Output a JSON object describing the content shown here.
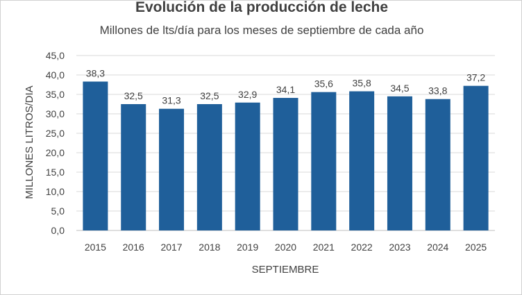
{
  "chart_data": {
    "type": "bar",
    "title": "Evolución de la producción de leche",
    "subtitle": "Millones de lts/día para los meses de septiembre de cada año",
    "xlabel": "SEPTIEMBRE",
    "ylabel": "MILLONES LITROS/DIA",
    "categories": [
      "2015",
      "2016",
      "2017",
      "2018",
      "2019",
      "2020",
      "2021",
      "2022",
      "2023",
      "2024",
      "2025"
    ],
    "values": [
      38.3,
      32.5,
      31.3,
      32.5,
      32.9,
      34.1,
      35.6,
      35.8,
      34.5,
      33.8,
      37.2
    ],
    "value_labels": [
      "38,3",
      "32,5",
      "31,3",
      "32,5",
      "32,9",
      "34,1",
      "35,6",
      "35,8",
      "34,5",
      "33,8",
      "37,2"
    ],
    "ylim": [
      0,
      45
    ],
    "y_ticks": [
      0,
      5,
      10,
      15,
      20,
      25,
      30,
      35,
      40,
      45
    ],
    "y_tick_labels": [
      "0,0",
      "5,0",
      "10,0",
      "15,0",
      "20,0",
      "25,0",
      "30,0",
      "35,0",
      "40,0",
      "45,0"
    ],
    "grid": true,
    "legend": "none",
    "colors": {
      "bar": "#1f5f9a",
      "grid": "#d9d9d9",
      "axis": "#bfbfbf",
      "text": "#404040"
    }
  }
}
